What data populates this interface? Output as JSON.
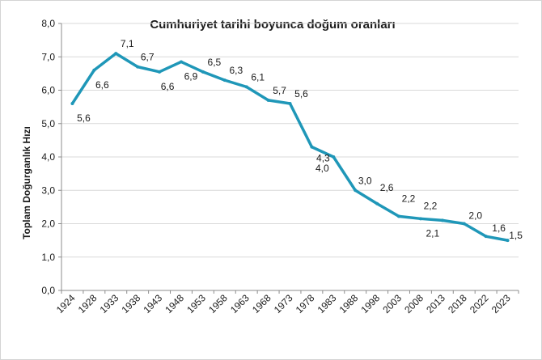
{
  "chart_data": {
    "type": "line",
    "title": "Cumhuriyet tarihi boyunca doğum oranları",
    "xlabel": "",
    "ylabel": "Toplam Doğurganlık Hızı",
    "ylim": [
      0,
      8
    ],
    "y_ticks": [
      "0,0",
      "1,0",
      "2,0",
      "3,0",
      "4,0",
      "5,0",
      "6,0",
      "7,0",
      "8,0"
    ],
    "grid": true,
    "legend": "none",
    "line_color": "#1f97b8",
    "categories": [
      "1924",
      "1928",
      "1933",
      "1938",
      "1943",
      "1948",
      "1953",
      "1958",
      "1963",
      "1968",
      "1973",
      "1978",
      "1983",
      "1988",
      "1998",
      "2003",
      "2008",
      "2013",
      "2018",
      "2022",
      "2023"
    ],
    "values": [
      5.6,
      6.6,
      7.1,
      6.7,
      6.55,
      6.85,
      6.55,
      6.3,
      6.1,
      5.7,
      5.6,
      4.3,
      4.0,
      3.0,
      2.6,
      2.22,
      2.15,
      2.1,
      2.0,
      1.62,
      1.5
    ],
    "data_labels": [
      "5,6",
      "6,6",
      "7,1",
      "6,7",
      "6,6",
      "6,9",
      "6,5",
      "6,3",
      "6,1",
      "5,7",
      "5,6",
      "4,3",
      "4,0",
      "3,0",
      "2,6",
      "2,2",
      "2,2",
      "2,1",
      "2,0",
      "1,6",
      "1,5"
    ]
  }
}
